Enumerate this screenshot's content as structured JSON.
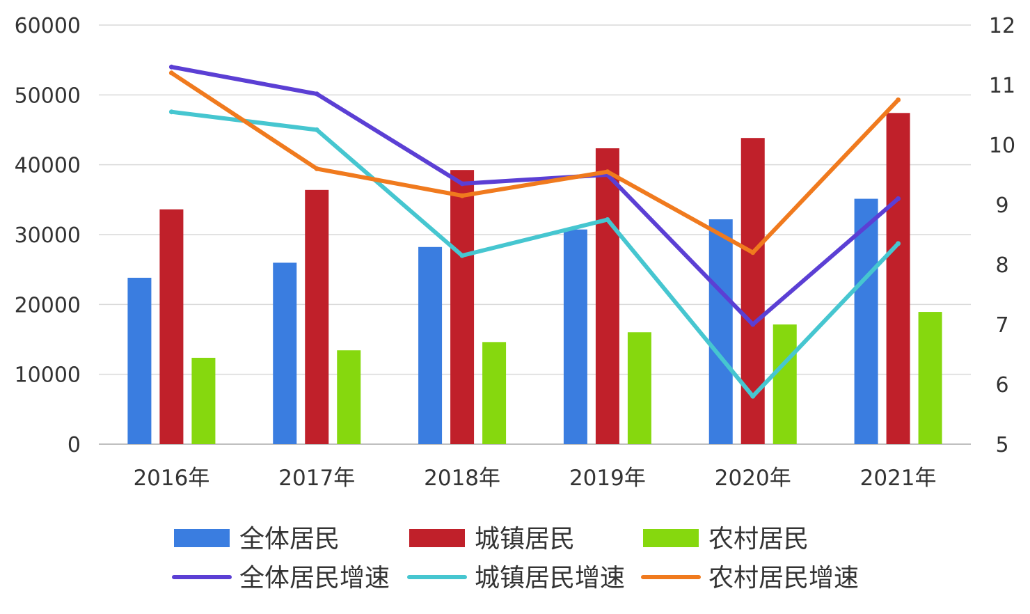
{
  "chart_data": {
    "type": "bar",
    "categories": [
      "2016年",
      "2017年",
      "2018年",
      "2019年",
      "2020年",
      "2021年"
    ],
    "y_left": {
      "ylim": [
        0,
        60000
      ],
      "ticks": [
        "0",
        "10000",
        "20000",
        "30000",
        "40000",
        "50000",
        "60000"
      ]
    },
    "y_right": {
      "ylim": [
        5,
        12
      ],
      "ticks": [
        "5",
        "6",
        "7",
        "8",
        "9",
        "10",
        "11",
        "12"
      ]
    },
    "bar_series": [
      {
        "name": "全体居民",
        "color": "#3a7de0",
        "values": [
          23821,
          25974,
          28228,
          30733,
          32189,
          35128
        ]
      },
      {
        "name": "城镇居民",
        "color": "#c0202a",
        "values": [
          33616,
          36396,
          39251,
          42359,
          43834,
          47412
        ]
      },
      {
        "name": "农村居民",
        "color": "#86d80e",
        "values": [
          12363,
          13432,
          14617,
          16021,
          17131,
          18931
        ]
      }
    ],
    "line_series": [
      {
        "name": "全体居民增速",
        "color": "#5b3fd4",
        "values": [
          11.3,
          10.85,
          9.35,
          9.5,
          7.0,
          9.1
        ]
      },
      {
        "name": "城镇居民增速",
        "color": "#46c6d0",
        "values": [
          10.55,
          10.25,
          8.15,
          8.75,
          5.8,
          8.35
        ]
      },
      {
        "name": "农村居民增速",
        "color": "#f07a1e",
        "values": [
          11.2,
          9.6,
          9.15,
          9.55,
          8.2,
          10.75
        ]
      }
    ],
    "grid": true,
    "legend_position": "bottom"
  }
}
